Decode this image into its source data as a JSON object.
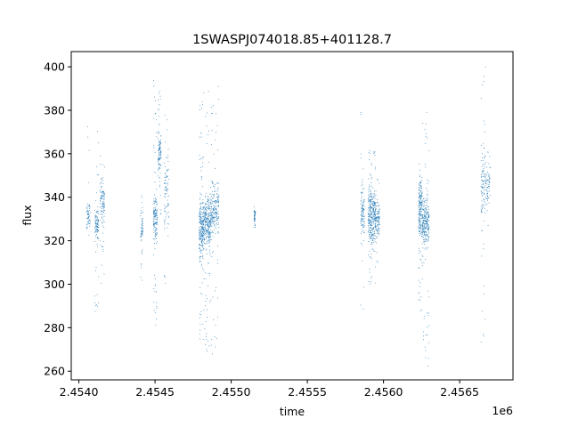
{
  "chart_data": {
    "type": "scatter",
    "title": "1SWASPJ074018.85+401128.7",
    "xlabel": "time",
    "ylabel": "flux",
    "x_offset_label": "1e6",
    "xlim": [
      2453950,
      2456850
    ],
    "ylim": [
      256,
      407
    ],
    "x_ticks": [
      2454000,
      2454500,
      2455000,
      2455500,
      2456000,
      2456500
    ],
    "x_tick_labels": [
      "2.4540",
      "2.4545",
      "2.4550",
      "2.4555",
      "2.4560",
      "2.4565"
    ],
    "y_ticks": [
      260,
      280,
      300,
      320,
      340,
      360,
      380,
      400
    ],
    "y_tick_labels": [
      "260",
      "280",
      "300",
      "320",
      "340",
      "360",
      "380",
      "400"
    ],
    "grid": false,
    "marker_color": "#1f77b4",
    "series": [
      {
        "segments": [
          {
            "x": [
              2454050,
              2454075
            ],
            "core": [
              322,
              340
            ],
            "tail": [
              298,
              378
            ],
            "n": 60
          },
          {
            "x": [
              2454105,
              2454130
            ],
            "core": [
              318,
              338
            ],
            "tail": [
              280,
              372
            ],
            "n": 110
          },
          {
            "x": [
              2454140,
              2454170
            ],
            "core": [
              325,
              352
            ],
            "tail": [
              300,
              360
            ],
            "n": 110
          },
          {
            "x": [
              2454405,
              2454420
            ],
            "core": [
              312,
              340
            ],
            "tail": [
              300,
              345
            ],
            "n": 60
          },
          {
            "x": [
              2454490,
              2454515
            ],
            "core": [
              315,
              345
            ],
            "tail": [
              278,
              395
            ],
            "n": 160
          },
          {
            "x": [
              2454520,
              2454540
            ],
            "core": [
              345,
              372
            ],
            "tail": [
              332,
              390
            ],
            "n": 110
          },
          {
            "x": [
              2454560,
              2454590
            ],
            "core": [
              312,
              375
            ],
            "tail": [
              300,
              378
            ],
            "n": 90
          },
          {
            "x": [
              2454790,
              2454815
            ],
            "core": [
              305,
              345
            ],
            "tail": [
              272,
              390
            ],
            "n": 230
          },
          {
            "x": [
              2454815,
              2454865
            ],
            "core": [
              312,
              345
            ],
            "tail": [
              268,
              390
            ],
            "n": 320
          },
          {
            "x": [
              2454865,
              2454920
            ],
            "core": [
              320,
              350
            ],
            "tail": [
              266,
              395
            ],
            "n": 230
          },
          {
            "x": [
              2455150,
              2455160
            ],
            "core": [
              326,
              336
            ],
            "tail": [
              326,
              336
            ],
            "n": 50
          },
          {
            "x": [
              2455850,
              2455875
            ],
            "core": [
              315,
              350
            ],
            "tail": [
              272,
              385
            ],
            "n": 110
          },
          {
            "x": [
              2455900,
              2455945
            ],
            "core": [
              312,
              350
            ],
            "tail": [
              300,
              362
            ],
            "n": 320
          },
          {
            "x": [
              2455945,
              2455975
            ],
            "core": [
              318,
              342
            ],
            "tail": [
              300,
              355
            ],
            "n": 130
          },
          {
            "x": [
              2456230,
              2456255
            ],
            "core": [
              315,
              355
            ],
            "tail": [
              285,
              360
            ],
            "n": 210
          },
          {
            "x": [
              2456255,
              2456300
            ],
            "core": [
              312,
              345
            ],
            "tail": [
              262,
              382
            ],
            "n": 260
          },
          {
            "x": [
              2456640,
              2456670
            ],
            "core": [
              325,
              370
            ],
            "tail": [
              265,
              402
            ],
            "n": 110
          },
          {
            "x": [
              2456670,
              2456700
            ],
            "core": [
              330,
              360
            ],
            "tail": [
              305,
              372
            ],
            "n": 60
          }
        ]
      }
    ]
  }
}
